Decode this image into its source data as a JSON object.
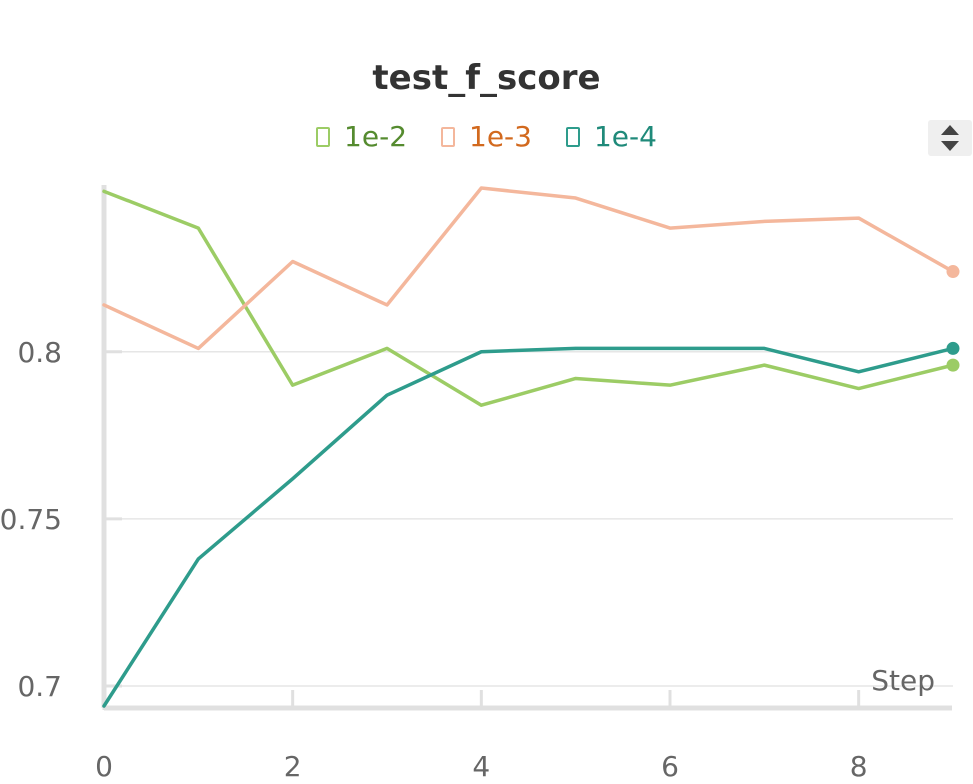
{
  "chart_data": {
    "type": "line",
    "title": "test_f_score",
    "xlabel": "Step",
    "ylabel": "",
    "x": [
      0,
      1,
      2,
      3,
      4,
      5,
      6,
      7,
      8,
      9
    ],
    "xlim": [
      0,
      9
    ],
    "ylim": [
      0.694,
      0.849
    ],
    "xticks": [
      0,
      2,
      4,
      6,
      8
    ],
    "yticks": [
      0.7,
      0.75,
      0.8
    ],
    "ytick_labels": [
      "0.7",
      "0.75",
      "0.8"
    ],
    "grid": true,
    "legend_position": "top-center",
    "series": [
      {
        "name": "1e-2",
        "color": "#9ccc65",
        "text_color": "#558b2f",
        "values": [
          0.848,
          0.837,
          0.79,
          0.801,
          0.784,
          0.792,
          0.79,
          0.796,
          0.789,
          0.796
        ]
      },
      {
        "name": "1e-3",
        "color": "#f4b79c",
        "text_color": "#d2691e",
        "values": [
          0.814,
          0.801,
          0.827,
          0.814,
          0.849,
          0.846,
          0.837,
          0.839,
          0.84,
          0.824
        ]
      },
      {
        "name": "1e-4",
        "color": "#2e9c8c",
        "text_color": "#1f8a7a",
        "values": [
          0.694,
          0.738,
          0.762,
          0.787,
          0.8,
          0.801,
          0.801,
          0.801,
          0.794,
          0.801
        ]
      }
    ]
  },
  "controls": {
    "sort_icon": "sort-icon"
  }
}
